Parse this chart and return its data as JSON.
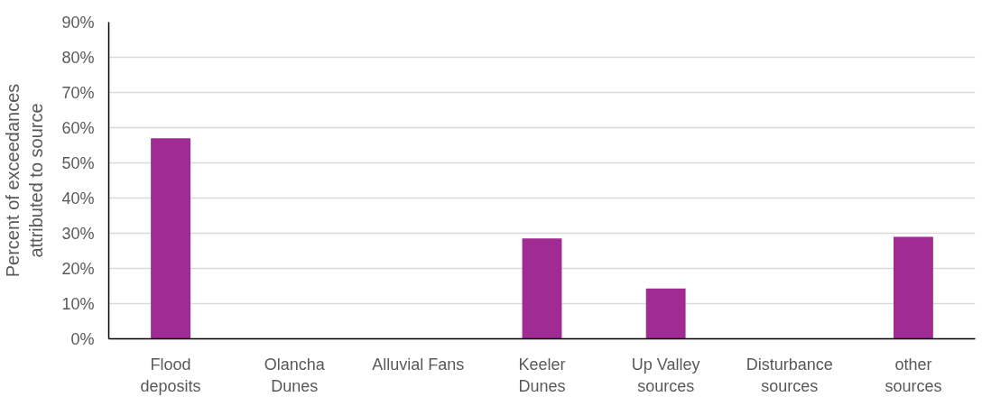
{
  "chart_data": {
    "type": "bar",
    "ylabel": "Percent of exceedances attributed to source",
    "categories": [
      "Flood deposits",
      "Olancha Dunes",
      "Alluvial Fans",
      "Keeler Dunes",
      "Up Valley sources",
      "Disturbance sources",
      "other sources"
    ],
    "values": [
      57,
      0,
      0,
      28.5,
      14.3,
      0,
      29
    ],
    "color": "#a02b93",
    "ylim": [
      0,
      90
    ],
    "yticks": [
      {
        "value": 0,
        "label": "0%"
      },
      {
        "value": 10,
        "label": "10%"
      },
      {
        "value": 20,
        "label": "20%"
      },
      {
        "value": 30,
        "label": "30%"
      },
      {
        "value": 40,
        "label": "40%"
      },
      {
        "value": 50,
        "label": "50%"
      },
      {
        "value": 60,
        "label": "60%"
      },
      {
        "value": 70,
        "label": "70%"
      },
      {
        "value": 80,
        "label": "80%"
      },
      {
        "value": 90,
        "label": "90%"
      }
    ],
    "grid": "y"
  }
}
